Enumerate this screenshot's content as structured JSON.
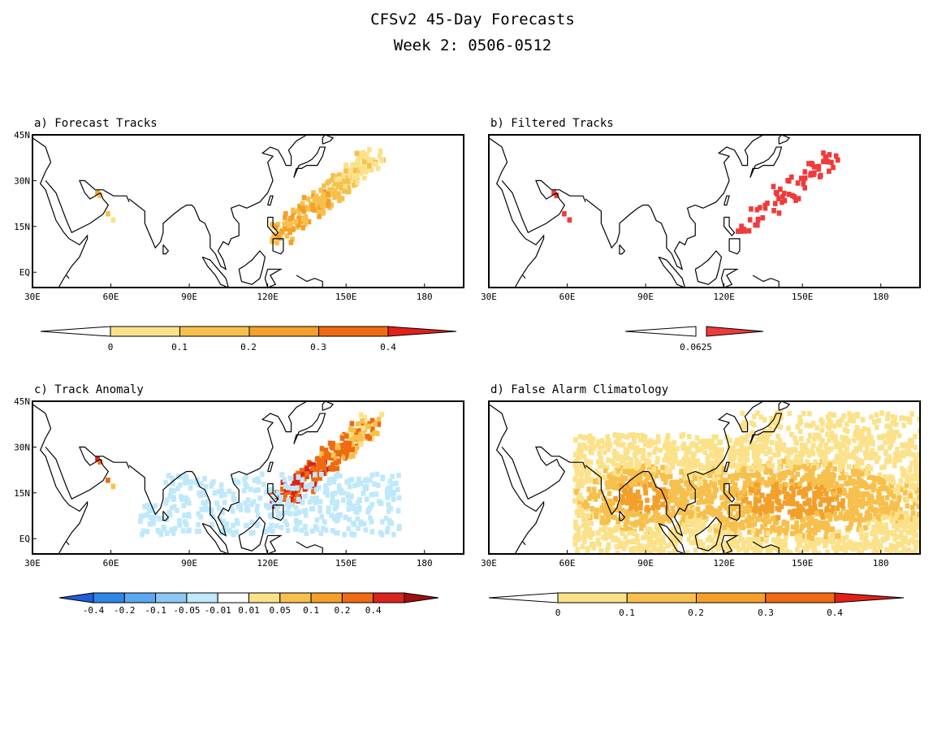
{
  "figure": {
    "title_line1": "CFSv2 45-Day Forecasts",
    "title_line2": "Week 2: 0506-0512"
  },
  "panels": [
    {
      "id": "a",
      "title": "a) Forecast Tracks",
      "field": "forecast"
    },
    {
      "id": "b",
      "title": "b) Filtered Tracks",
      "field": "filtered"
    },
    {
      "id": "c",
      "title": "c) Track Anomaly",
      "field": "anomaly"
    },
    {
      "id": "d",
      "title": "d) False Alarm Climatology",
      "field": "climatology"
    }
  ],
  "axes": {
    "lon_ticks": [
      "30E",
      "60E",
      "90E",
      "120E",
      "150E",
      "180"
    ],
    "lat_ticks": [
      "45N",
      "30N",
      "15N",
      "EQ"
    ],
    "lon_range": [
      30,
      195
    ],
    "lat_range": [
      -5,
      45
    ]
  },
  "colorbars": {
    "a": {
      "labels": [
        "0",
        "0.1",
        "0.2",
        "0.3",
        "0.4"
      ],
      "colors": [
        "#ffffff",
        "#fbe28a",
        "#f7c04c",
        "#f3a02a",
        "#ef6a12",
        "#e22018"
      ]
    },
    "b": {
      "labels": [
        "0.0625"
      ],
      "colors": [
        "#ffffff",
        "#ef3b3b"
      ]
    },
    "c": {
      "labels": [
        "-0.4",
        "-0.2",
        "-0.1",
        "-0.05",
        "-0.01",
        "0.01",
        "0.05",
        "0.1",
        "0.2",
        "0.4"
      ],
      "colors": [
        "#1e5fd9",
        "#2f86e6",
        "#5aa8ef",
        "#8cc8f5",
        "#bfe8fb",
        "#ffffff",
        "#fbe28a",
        "#f7c04c",
        "#f3a02a",
        "#ef6a12",
        "#d9231b",
        "#a50e0e"
      ]
    },
    "d": {
      "labels": [
        "0",
        "0.1",
        "0.2",
        "0.3",
        "0.4"
      ],
      "colors": [
        "#ffffff",
        "#fbe28a",
        "#f7c04c",
        "#f3a02a",
        "#ef6a12",
        "#e22018"
      ]
    }
  }
}
